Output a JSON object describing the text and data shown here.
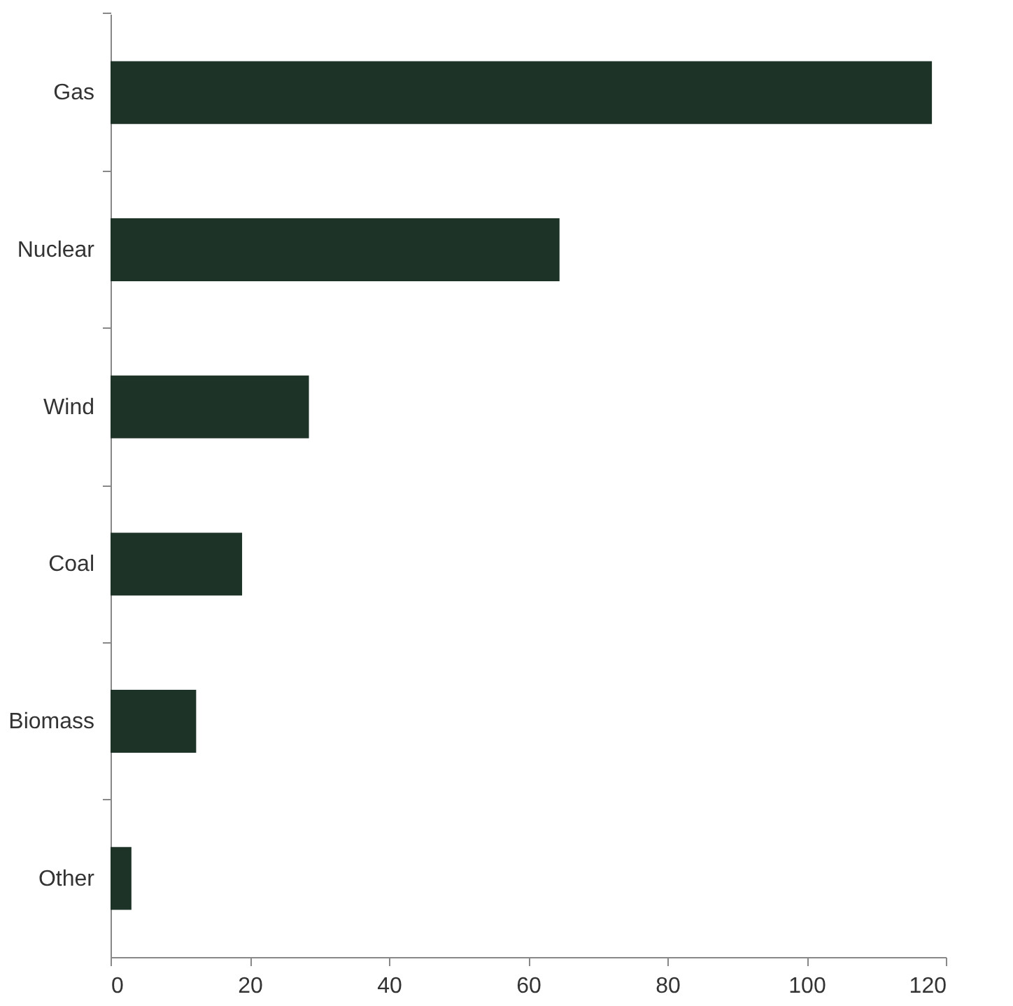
{
  "chart_data": {
    "type": "bar",
    "orientation": "horizontal",
    "categories": [
      "Gas",
      "Nuclear",
      "Wind",
      "Coal",
      "Biomass",
      "Other"
    ],
    "values": [
      118,
      64.5,
      28.5,
      18.9,
      12.3,
      3.0
    ],
    "color": "#1e3327",
    "xlim": [
      0,
      120
    ],
    "xticks": [
      0,
      20,
      40,
      60,
      80,
      100,
      120
    ],
    "grid": false
  }
}
